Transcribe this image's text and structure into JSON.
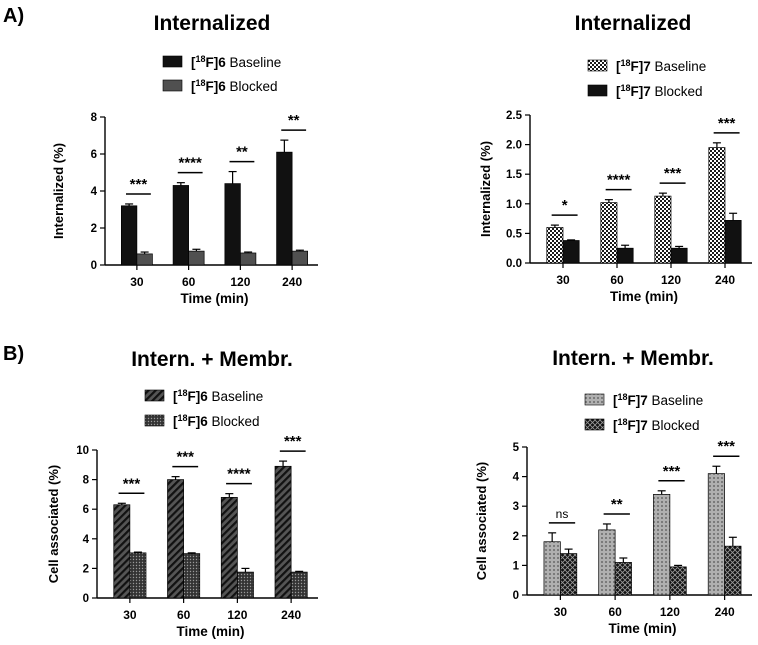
{
  "panels": [
    {
      "label": "A)"
    },
    {
      "label": "B)"
    }
  ],
  "chart_data": [
    {
      "type": "bar",
      "panel": "A",
      "title": "Internalized",
      "xlabel": "Time (min)",
      "ylabel": "Internalized (%)",
      "ylim": [
        0,
        8
      ],
      "yticks": [
        {
          "v": 0,
          "label": "0"
        },
        {
          "v": 2,
          "label": "2"
        },
        {
          "v": 4,
          "label": "4"
        },
        {
          "v": 6,
          "label": "6"
        },
        {
          "v": 8,
          "label": "8"
        }
      ],
      "categories": [
        "30",
        "60",
        "120",
        "240"
      ],
      "series": [
        {
          "name": "[18F]6 Baseline",
          "legend_prefix": "[",
          "legend_sup": "18",
          "legend_mid": "F]6",
          "legend_suffix": " Baseline",
          "fill": "solid-black",
          "values": [
            3.2,
            4.3,
            4.4,
            6.1
          ],
          "errors": [
            0.1,
            0.15,
            0.65,
            0.65
          ]
        },
        {
          "name": "[18F]6 Blocked",
          "legend_prefix": "[",
          "legend_sup": "18",
          "legend_mid": "F]6",
          "legend_suffix": " Blocked",
          "fill": "solid-gray",
          "values": [
            0.6,
            0.75,
            0.65,
            0.75
          ],
          "errors": [
            0.1,
            0.1,
            0.05,
            0.05
          ]
        }
      ],
      "significance": [
        "***",
        "****",
        "**",
        "**"
      ]
    },
    {
      "type": "bar",
      "panel": "A",
      "title": "Internalized",
      "xlabel": "Time (min)",
      "ylabel": "Internalized (%)",
      "ylim": [
        0,
        2.5
      ],
      "yticks": [
        {
          "v": 0,
          "label": "0.0"
        },
        {
          "v": 0.5,
          "label": "0.5"
        },
        {
          "v": 1,
          "label": "1.0"
        },
        {
          "v": 1.5,
          "label": "1.5"
        },
        {
          "v": 2,
          "label": "2.0"
        },
        {
          "v": 2.5,
          "label": "2.5"
        }
      ],
      "categories": [
        "30",
        "60",
        "120",
        "240"
      ],
      "series": [
        {
          "name": "[18F]7 Baseline",
          "legend_prefix": "[",
          "legend_sup": "18",
          "legend_mid": "F]7",
          "legend_suffix": " Baseline",
          "fill": "checker",
          "values": [
            0.6,
            1.02,
            1.13,
            1.95
          ],
          "errors": [
            0.04,
            0.05,
            0.05,
            0.08
          ]
        },
        {
          "name": "[18F]7 Blocked",
          "legend_prefix": "[",
          "legend_sup": "18",
          "legend_mid": "F]7",
          "legend_suffix": " Blocked",
          "fill": "solid-black",
          "values": [
            0.38,
            0.25,
            0.25,
            0.72
          ],
          "errors": [
            0.01,
            0.05,
            0.03,
            0.12
          ]
        }
      ],
      "significance": [
        "*",
        "****",
        "***",
        "***"
      ]
    },
    {
      "type": "bar",
      "panel": "B",
      "title": "Intern. + Membr.",
      "xlabel": "Time (min)",
      "ylabel": "Cell associated (%)",
      "ylim": [
        0,
        10
      ],
      "yticks": [
        {
          "v": 0,
          "label": "0"
        },
        {
          "v": 2,
          "label": "2"
        },
        {
          "v": 4,
          "label": "4"
        },
        {
          "v": 6,
          "label": "6"
        },
        {
          "v": 8,
          "label": "8"
        },
        {
          "v": 10,
          "label": "10"
        }
      ],
      "categories": [
        "30",
        "60",
        "120",
        "240"
      ],
      "series": [
        {
          "name": "[18F]6 Baseline",
          "legend_prefix": "[",
          "legend_sup": "18",
          "legend_mid": "F]6",
          "legend_suffix": " Baseline",
          "fill": "diagonal",
          "values": [
            6.3,
            8.0,
            6.8,
            8.9
          ],
          "errors": [
            0.1,
            0.2,
            0.25,
            0.35
          ]
        },
        {
          "name": "[18F]6 Blocked",
          "legend_prefix": "[",
          "legend_sup": "18",
          "legend_mid": "F]6",
          "legend_suffix": " Blocked",
          "fill": "dotted-dark",
          "values": [
            3.05,
            3.0,
            1.75,
            1.75
          ],
          "errors": [
            0.05,
            0.05,
            0.25,
            0.05
          ]
        }
      ],
      "significance": [
        "***",
        "***",
        "****",
        "***"
      ]
    },
    {
      "type": "bar",
      "panel": "B",
      "title": "Intern. + Membr.",
      "xlabel": "Time (min)",
      "ylabel": "Cell associated (%)",
      "ylim": [
        0,
        5
      ],
      "yticks": [
        {
          "v": 0,
          "label": "0"
        },
        {
          "v": 1,
          "label": "1"
        },
        {
          "v": 2,
          "label": "2"
        },
        {
          "v": 3,
          "label": "3"
        },
        {
          "v": 4,
          "label": "4"
        },
        {
          "v": 5,
          "label": "5"
        }
      ],
      "categories": [
        "30",
        "60",
        "120",
        "240"
      ],
      "series": [
        {
          "name": "[18F]7 Baseline",
          "legend_prefix": "[",
          "legend_sup": "18",
          "legend_mid": "F]7",
          "legend_suffix": " Baseline",
          "fill": "dotted-light",
          "values": [
            1.8,
            2.2,
            3.4,
            4.1
          ],
          "errors": [
            0.3,
            0.2,
            0.12,
            0.25
          ]
        },
        {
          "name": "[18F]7 Blocked",
          "legend_prefix": "[",
          "legend_sup": "18",
          "legend_mid": "F]7",
          "legend_suffix": " Blocked",
          "fill": "crosshatch",
          "values": [
            1.4,
            1.1,
            0.95,
            1.65
          ],
          "errors": [
            0.15,
            0.15,
            0.05,
            0.3
          ]
        }
      ],
      "significance": [
        "ns",
        "**",
        "***",
        "***"
      ]
    }
  ]
}
